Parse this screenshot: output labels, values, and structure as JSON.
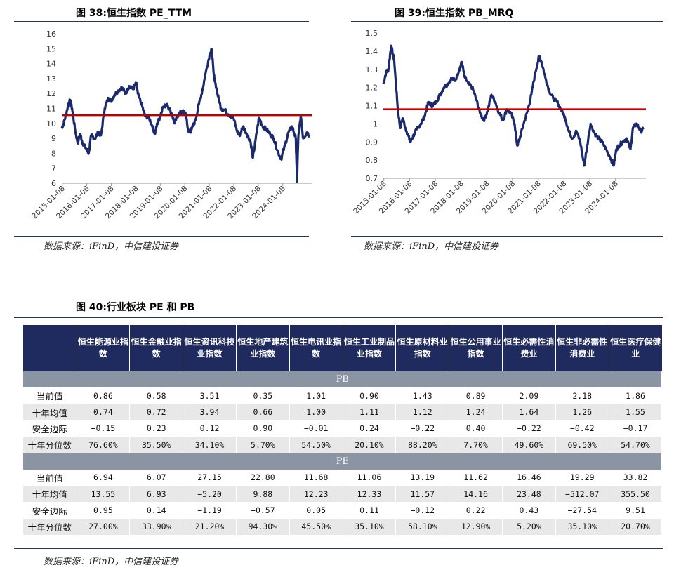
{
  "fig38": {
    "title": "图 38:恒生指数 PE_TTM",
    "source": "数据来源：iFinD，中信建投证券",
    "chart_data": {
      "type": "line",
      "ylim": [
        6,
        16
      ],
      "yticks": [
        "16",
        "15",
        "14",
        "13",
        "12",
        "11",
        "10",
        "9",
        "8",
        "7",
        "6"
      ],
      "xticks": [
        "2015-01-08",
        "2016-01-08",
        "2017-01-08",
        "2018-01-08",
        "2019-01-08",
        "2020-01-08",
        "2021-01-08",
        "2022-01-08",
        "2023-01-08",
        "2024-01-08"
      ],
      "xrange": [
        2015.0,
        2025.2
      ],
      "mean_line": 10.55,
      "series": [
        {
          "x": [
            2015.0,
            2015.08,
            2015.2,
            2015.32,
            2015.42,
            2015.55,
            2015.65,
            2015.75,
            2015.85,
            2016.0,
            2016.1,
            2016.2,
            2016.35,
            2016.5,
            2016.6,
            2016.75,
            2016.9,
            2017.0,
            2017.15,
            2017.3,
            2017.45,
            2017.6,
            2017.75,
            2017.9,
            2018.05,
            2018.1,
            2018.25,
            2018.4,
            2018.55,
            2018.7,
            2018.8,
            2018.9,
            2019.0,
            2019.1,
            2019.3,
            2019.5,
            2019.6,
            2019.75,
            2019.9,
            2020.05,
            2020.15,
            2020.22,
            2020.3,
            2020.45,
            2020.6,
            2020.75,
            2020.9,
            2021.05,
            2021.12,
            2021.2,
            2021.35,
            2021.5,
            2021.65,
            2021.8,
            2022.0,
            2022.15,
            2022.25,
            2022.4,
            2022.55,
            2022.7,
            2022.8,
            2022.9,
            2023.05,
            2023.2,
            2023.35,
            2023.5,
            2023.65,
            2023.8,
            2023.95,
            2024.1,
            2024.25,
            2024.4,
            2024.55,
            2024.6,
            2024.65,
            2024.75,
            2024.85,
            2025.0,
            2025.1
          ],
          "y": [
            9.7,
            10.0,
            10.8,
            11.6,
            11.0,
            9.5,
            8.7,
            9.3,
            8.7,
            8.3,
            8.0,
            9.2,
            9.0,
            9.4,
            9.2,
            11.0,
            11.7,
            11.5,
            11.9,
            12.2,
            12.4,
            12.0,
            12.5,
            12.3,
            12.7,
            12.0,
            11.3,
            10.5,
            10.4,
            9.8,
            9.3,
            10.0,
            10.4,
            11.0,
            11.3,
            10.6,
            10.0,
            10.6,
            10.8,
            10.7,
            9.6,
            9.4,
            9.6,
            10.2,
            11.3,
            12.3,
            13.6,
            14.7,
            14.9,
            13.3,
            12.0,
            11.0,
            10.9,
            10.6,
            10.4,
            9.5,
            9.2,
            9.8,
            9.3,
            8.8,
            7.7,
            8.8,
            10.4,
            9.8,
            9.6,
            9.3,
            9.0,
            8.2,
            7.6,
            8.5,
            9.4,
            9.8,
            9.0,
            6.1,
            9.0,
            10.5,
            9.0,
            9.4,
            9.2
          ]
        }
      ]
    }
  },
  "fig39": {
    "title": "图 39:恒生指数 PB_MRQ",
    "source": "数据来源：iFinD，中信建投证券",
    "chart_data": {
      "type": "line",
      "ylim": [
        0.7,
        1.5
      ],
      "yticks": [
        "1.5",
        "1.4",
        "1.3",
        "1.2",
        "1.1",
        "1",
        "0.9",
        "0.8",
        "0.7"
      ],
      "xticks": [
        "2015-01-08",
        "2016-01-08",
        "2017-01-08",
        "2018-01-08",
        "2019-01-08",
        "2020-01-08",
        "2021-01-08",
        "2022-01-08",
        "2023-01-08",
        "2024-01-08"
      ],
      "xrange": [
        2015.0,
        2025.2
      ],
      "mean_line": 1.08,
      "series": [
        {
          "x": [
            2015.0,
            2015.1,
            2015.2,
            2015.3,
            2015.42,
            2015.55,
            2015.65,
            2015.75,
            2015.9,
            2016.05,
            2016.15,
            2016.3,
            2016.45,
            2016.6,
            2016.75,
            2016.9,
            2017.05,
            2017.2,
            2017.35,
            2017.5,
            2017.65,
            2017.8,
            2017.95,
            2018.05,
            2018.15,
            2018.3,
            2018.45,
            2018.6,
            2018.75,
            2018.9,
            2019.05,
            2019.2,
            2019.35,
            2019.5,
            2019.65,
            2019.8,
            2019.95,
            2020.1,
            2020.2,
            2020.3,
            2020.45,
            2020.6,
            2020.75,
            2020.9,
            2021.05,
            2021.15,
            2021.3,
            2021.45,
            2021.6,
            2021.75,
            2021.9,
            2022.05,
            2022.2,
            2022.35,
            2022.5,
            2022.65,
            2022.8,
            2022.9,
            2023.05,
            2023.2,
            2023.35,
            2023.5,
            2023.65,
            2023.8,
            2023.95,
            2024.05,
            2024.15,
            2024.3,
            2024.45,
            2024.6,
            2024.7,
            2024.85,
            2025.0,
            2025.1
          ],
          "y": [
            1.22,
            1.28,
            1.3,
            1.43,
            1.35,
            1.1,
            0.98,
            1.03,
            0.96,
            0.9,
            0.93,
            0.97,
            1.0,
            1.04,
            1.12,
            1.1,
            1.12,
            1.16,
            1.2,
            1.22,
            1.25,
            1.24,
            1.3,
            1.34,
            1.26,
            1.22,
            1.2,
            1.14,
            1.06,
            1.02,
            1.07,
            1.16,
            1.12,
            1.06,
            1.02,
            1.08,
            1.06,
            1.0,
            0.88,
            0.92,
            1.0,
            1.07,
            1.16,
            1.28,
            1.37,
            1.34,
            1.25,
            1.18,
            1.14,
            1.12,
            1.08,
            1.04,
            0.96,
            0.92,
            0.96,
            0.9,
            0.77,
            0.86,
            1.0,
            0.95,
            0.92,
            0.9,
            0.86,
            0.82,
            0.77,
            0.86,
            0.88,
            0.9,
            0.92,
            0.86,
            0.98,
            1.0,
            0.96,
            0.97
          ]
        }
      ]
    }
  },
  "fig40": {
    "title": "图 40:行业板块 PE 和 PB",
    "source": "数据来源：iFinD，中信建投证券",
    "headers": [
      "",
      "恒生能源业指数",
      "恒生金融业指数",
      "恒生资讯科技业指数",
      "恒生地产建筑业指数",
      "恒生电讯业指数",
      "恒生工业制品业指数",
      "恒生原材料业指数",
      "恒生公用事业指数",
      "恒生必需性消费业",
      "恒生非必需性消费业",
      "恒生医疗保健业"
    ],
    "pb_label": "PB",
    "pe_label": "PE",
    "pb_rows": [
      [
        "当前值",
        "0.86",
        "0.58",
        "3.51",
        "0.35",
        "1.01",
        "0.90",
        "1.43",
        "0.89",
        "2.09",
        "2.18",
        "1.86"
      ],
      [
        "十年均值",
        "0.74",
        "0.72",
        "3.94",
        "0.66",
        "1.00",
        "1.11",
        "1.12",
        "1.24",
        "1.64",
        "1.26",
        "1.55"
      ],
      [
        "安全边际",
        "-0.15",
        "0.23",
        "0.12",
        "0.90",
        "-0.01",
        "0.24",
        "-0.22",
        "0.40",
        "-0.22",
        "-0.42",
        "-0.17"
      ],
      [
        "十年分位数",
        "76.60%",
        "35.50%",
        "34.10%",
        "5.70%",
        "54.50%",
        "20.10%",
        "88.20%",
        "7.70%",
        "49.60%",
        "69.50%",
        "54.70%"
      ]
    ],
    "pe_rows": [
      [
        "当前值",
        "6.94",
        "6.07",
        "27.15",
        "22.80",
        "11.68",
        "11.06",
        "13.19",
        "11.62",
        "16.46",
        "19.29",
        "33.82"
      ],
      [
        "十年均值",
        "13.55",
        "6.93",
        "-5.20",
        "9.88",
        "12.23",
        "12.33",
        "11.57",
        "14.16",
        "23.48",
        "-512.07",
        "355.50"
      ],
      [
        "安全边际",
        "0.95",
        "0.14",
        "-1.19",
        "-0.57",
        "0.05",
        "0.11",
        "-0.12",
        "0.22",
        "0.43",
        "-27.54",
        "9.51"
      ],
      [
        "十年分位数",
        "27.00%",
        "33.90%",
        "21.20%",
        "94.30%",
        "45.50%",
        "35.10%",
        "58.10%",
        "12.90%",
        "5.20%",
        "35.10%",
        "20.70%"
      ]
    ],
    "colors": {
      "header_bg": "#1f2a5e",
      "band_bg": "#8b94a3",
      "line": "#1a2a6c",
      "mean": "#c00000"
    }
  }
}
